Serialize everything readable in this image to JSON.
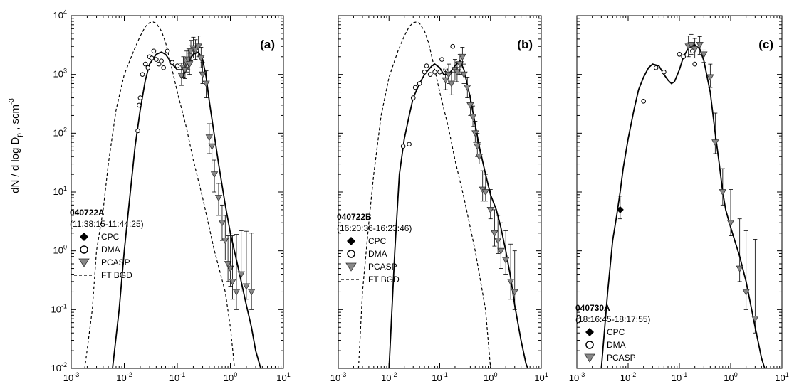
{
  "y_axis_label": {
    "main": "dN / d log D",
    "sub": "p",
    "mid": " ,  scm",
    "sup": "-3"
  },
  "x_axis_label": {
    "main": "particle diameter D",
    "sub": "p",
    "tail": " , µm"
  },
  "x_tick_labels": [
    {
      "base": "10",
      "exp": "-3"
    },
    {
      "base": "10",
      "exp": "-2"
    },
    {
      "base": "10",
      "exp": "-1"
    },
    {
      "base": "10",
      "exp": "0"
    },
    {
      "base": "10",
      "exp": "1"
    }
  ],
  "y_tick_labels": [
    {
      "base": "10",
      "exp": "-2"
    },
    {
      "base": "10",
      "exp": "-1"
    },
    {
      "base": "10",
      "exp": "0"
    },
    {
      "base": "10",
      "exp": "1"
    },
    {
      "base": "10",
      "exp": "2"
    },
    {
      "base": "10",
      "exp": "3"
    },
    {
      "base": "10",
      "exp": "4"
    }
  ],
  "marker_colors": {
    "cpc": "#000000",
    "dma": "#ffffff",
    "pcasp": "#888888"
  },
  "chart_data": [
    {
      "type": "scatter",
      "panel_label": "(a)",
      "flight_id": "040722A",
      "time_range": "(11:38:15-11:44:25)",
      "x_scale": "log",
      "y_scale": "log",
      "xlim": [
        0.001,
        10
      ],
      "ylim": [
        0.01,
        10000
      ],
      "legend": [
        "CPC",
        "DMA",
        "PCASP",
        "FT BGD"
      ],
      "series": [
        {
          "name": "DMA",
          "marker": "open-circle",
          "x": [
            0.018,
            0.019,
            0.02,
            0.022,
            0.025,
            0.028,
            0.03,
            0.033,
            0.036,
            0.04,
            0.045,
            0.05,
            0.055,
            0.065,
            0.08,
            0.1
          ],
          "y": [
            110,
            300,
            400,
            1000,
            1500,
            1300,
            2000,
            1900,
            2500,
            1800,
            1500,
            1700,
            1300,
            2500,
            1600,
            1400
          ]
        },
        {
          "name": "PCASP",
          "marker": "gray-down-triangle",
          "x": [
            0.12,
            0.13,
            0.14,
            0.15,
            0.16,
            0.17,
            0.18,
            0.2,
            0.22,
            0.25,
            0.28,
            0.3,
            0.35,
            0.4,
            0.45,
            0.5,
            0.6,
            0.7,
            0.8,
            0.9,
            1.0,
            1.1,
            1.3,
            1.6,
            2.0,
            2.5
          ],
          "y": [
            950,
            1300,
            1200,
            1600,
            1800,
            1500,
            2500,
            2800,
            2600,
            3000,
            1900,
            1000,
            700,
            85,
            60,
            20,
            8,
            3,
            1.5,
            0.6,
            0.5,
            0.3,
            0.2,
            0.4,
            0.25,
            0.2
          ],
          "err_low": [
            300,
            400,
            350,
            500,
            600,
            500,
            800,
            900,
            800,
            1000,
            600,
            300,
            300,
            40,
            30,
            10,
            4,
            1.5,
            0.8,
            0.3,
            0.25,
            0.15,
            0.1,
            0.2,
            0.1,
            0.1
          ],
          "err_high": [
            600,
            700,
            700,
            900,
            1000,
            800,
            1300,
            1500,
            1300,
            1500,
            1000,
            600,
            450,
            60,
            45,
            15,
            6,
            3,
            2.5,
            1.2,
            1.5,
            1.5,
            1.7,
            1.8,
            1.9,
            1.8
          ]
        },
        {
          "name": "fit",
          "style": "solid-line",
          "x": [
            0.006,
            0.008,
            0.01,
            0.013,
            0.016,
            0.02,
            0.025,
            0.03,
            0.04,
            0.05,
            0.06,
            0.07,
            0.08,
            0.1,
            0.12,
            0.15,
            0.2,
            0.25,
            0.3,
            0.35,
            0.4,
            0.5,
            0.6,
            0.8,
            1.0,
            1.3,
            1.6,
            2.0,
            2.5,
            3.0,
            4.0
          ],
          "y": [
            0.01,
            0.1,
            1,
            10,
            60,
            250,
            800,
            1500,
            2200,
            2400,
            2200,
            1800,
            1500,
            1200,
            1200,
            1500,
            2200,
            2400,
            1800,
            900,
            350,
            90,
            30,
            6,
            2,
            0.7,
            0.3,
            0.12,
            0.05,
            0.02,
            0.008
          ]
        },
        {
          "name": "FT BGD",
          "style": "dashed-line",
          "x": [
            0.0018,
            0.0025,
            0.003,
            0.004,
            0.005,
            0.007,
            0.01,
            0.015,
            0.02,
            0.025,
            0.03,
            0.035,
            0.04,
            0.05,
            0.06,
            0.08,
            0.1,
            0.15,
            0.2,
            0.3,
            0.5,
            0.8,
            1.0,
            1.2
          ],
          "y": [
            0.01,
            0.1,
            1,
            5,
            30,
            250,
            1000,
            2500,
            4500,
            6500,
            7600,
            7800,
            7400,
            5500,
            3500,
            1200,
            500,
            120,
            35,
            8,
            1,
            0.2,
            0.05,
            0.01
          ]
        }
      ]
    },
    {
      "type": "scatter",
      "panel_label": "(b)",
      "flight_id": "040722B",
      "time_range": "(16:20:36-16:23:46)",
      "x_scale": "log",
      "y_scale": "log",
      "xlim": [
        0.001,
        10
      ],
      "ylim": [
        0.01,
        10000
      ],
      "legend": [
        "CPC",
        "DMA",
        "PCASP",
        "FT BGD"
      ],
      "series": [
        {
          "name": "DMA",
          "marker": "open-circle",
          "x": [
            0.019,
            0.025,
            0.03,
            0.033,
            0.04,
            0.05,
            0.055,
            0.065,
            0.08,
            0.1,
            0.11,
            0.13,
            0.18
          ],
          "y": [
            60,
            65,
            400,
            600,
            700,
            1100,
            1400,
            1000,
            1100,
            1100,
            1800,
            1200,
            3000
          ]
        },
        {
          "name": "PCASP",
          "marker": "gray-down-triangle",
          "x": [
            0.13,
            0.15,
            0.17,
            0.2,
            0.22,
            0.25,
            0.28,
            0.3,
            0.35,
            0.4,
            0.45,
            0.5,
            0.55,
            0.6,
            0.7,
            0.8,
            1.0,
            1.2,
            1.4,
            1.6,
            2.0,
            2.5,
            3.0
          ],
          "y": [
            800,
            1000,
            700,
            1200,
            1100,
            1500,
            2000,
            1000,
            600,
            300,
            190,
            100,
            60,
            40,
            11,
            10,
            5,
            2,
            1.5,
            1,
            0.7,
            0.3,
            0.2
          ],
          "err_low": [
            250,
            300,
            250,
            400,
            350,
            500,
            700,
            300,
            200,
            100,
            60,
            30,
            20,
            10,
            4,
            3,
            1.5,
            0.8,
            0.6,
            0.5,
            0.3,
            0.15,
            0.1
          ],
          "err_high": [
            400,
            500,
            400,
            600,
            500,
            700,
            900,
            500,
            300,
            150,
            100,
            60,
            40,
            30,
            12,
            10,
            6,
            3,
            2.5,
            2,
            1.5,
            1,
            0.8
          ]
        },
        {
          "name": "fit",
          "style": "solid-line",
          "x": [
            0.01,
            0.013,
            0.016,
            0.02,
            0.025,
            0.03,
            0.04,
            0.05,
            0.06,
            0.07,
            0.08,
            0.1,
            0.12,
            0.15,
            0.2,
            0.25,
            0.3,
            0.4,
            0.5,
            0.6,
            0.8,
            1.0,
            1.3,
            1.6,
            2.0,
            2.5,
            3.0,
            4.0,
            5.0,
            6.0
          ],
          "y": [
            0.01,
            1,
            20,
            80,
            200,
            400,
            700,
            1000,
            1200,
            1400,
            1500,
            1300,
            1000,
            1000,
            1400,
            1700,
            1200,
            400,
            140,
            60,
            20,
            9,
            5,
            2.5,
            1,
            0.35,
            0.12,
            0.03,
            0.012,
            0.008
          ]
        },
        {
          "name": "FT BGD",
          "style": "dashed-line",
          "x": [
            0.0025,
            0.003,
            0.004,
            0.005,
            0.007,
            0.01,
            0.015,
            0.02,
            0.025,
            0.03,
            0.035,
            0.04,
            0.05,
            0.06,
            0.08,
            0.1,
            0.15,
            0.2,
            0.3,
            0.5,
            0.8,
            1.0
          ],
          "y": [
            0.01,
            0.2,
            3,
            20,
            200,
            900,
            2500,
            4500,
            6500,
            7600,
            7800,
            7400,
            5500,
            3500,
            1200,
            500,
            120,
            35,
            8,
            1,
            0.1,
            0.01
          ]
        }
      ]
    },
    {
      "type": "scatter",
      "panel_label": "(c)",
      "flight_id": "040730A",
      "time_range": "(18:16:45-18:17:55)",
      "x_scale": "log",
      "y_scale": "log",
      "xlim": [
        0.001,
        10
      ],
      "ylim": [
        0.01,
        10000
      ],
      "legend": [
        "CPC",
        "DMA",
        "PCASP"
      ],
      "series": [
        {
          "name": "CPC",
          "marker": "filled-diamond",
          "x": [
            0.007
          ],
          "y": [
            5
          ],
          "err_low": [
            1.5
          ],
          "err_high": [
            3.5
          ]
        },
        {
          "name": "DMA",
          "marker": "open-circle",
          "x": [
            0.02,
            0.035,
            0.05,
            0.1,
            0.12,
            0.18,
            0.2
          ],
          "y": [
            350,
            1300,
            1100,
            2200,
            2000,
            2500,
            1500
          ]
        },
        {
          "name": "PCASP",
          "marker": "gray-down-triangle",
          "x": [
            0.15,
            0.17,
            0.2,
            0.25,
            0.3,
            0.4,
            0.5,
            0.7,
            1.0,
            1.5,
            2.0,
            3.0
          ],
          "y": [
            3000,
            3200,
            2700,
            3200,
            2200,
            900,
            70,
            10,
            3,
            0.5,
            0.2,
            0.07
          ],
          "err_low": [
            1000,
            1000,
            800,
            1000,
            600,
            300,
            25,
            4,
            1.2,
            0.2,
            0.1,
            0.03
          ],
          "err_high": [
            1500,
            1600,
            1400,
            1200,
            400,
            600,
            150,
            15,
            8,
            3,
            2,
            1.5
          ]
        },
        {
          "name": "fit",
          "style": "solid-line",
          "x": [
            0.003,
            0.004,
            0.005,
            0.006,
            0.007,
            0.008,
            0.01,
            0.013,
            0.016,
            0.02,
            0.025,
            0.03,
            0.04,
            0.05,
            0.06,
            0.07,
            0.08,
            0.1,
            0.12,
            0.15,
            0.2,
            0.25,
            0.3,
            0.4,
            0.5,
            0.6,
            0.7,
            0.8,
            1.0,
            1.2,
            1.5,
            2.0,
            3.0,
            4.0,
            5.0
          ],
          "y": [
            0.01,
            0.2,
            1.5,
            4,
            10,
            25,
            80,
            250,
            550,
            900,
            1300,
            1500,
            1400,
            1000,
            800,
            700,
            750,
            1200,
            2000,
            2800,
            3200,
            2700,
            1700,
            500,
            100,
            30,
            10,
            5,
            2.5,
            1.5,
            0.8,
            0.3,
            0.05,
            0.015,
            0.008
          ]
        }
      ]
    }
  ]
}
